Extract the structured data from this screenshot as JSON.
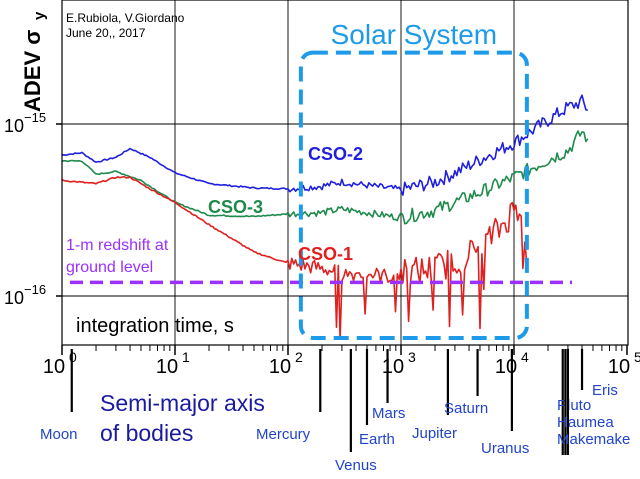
{
  "credit": {
    "line1": "E.Rubiola, V.Giordano",
    "line2": "June 20,, 2017"
  },
  "chart_data": {
    "type": "line",
    "ylabel_main": "ADEV σ",
    "ylabel_sub": "y",
    "xlabel": "integration time, s",
    "x_scale": "log",
    "y_scale": "log",
    "xlim": [
      1,
      100000
    ],
    "ylim": [
      5e-17,
      4e-15
    ],
    "grid": true,
    "x_ticks": [
      {
        "value": 1,
        "base": "10",
        "exp": "0"
      },
      {
        "value": 10,
        "base": "10",
        "exp": "1"
      },
      {
        "value": 100,
        "base": "10",
        "exp": "2"
      },
      {
        "value": 1000,
        "base": "10",
        "exp": "3"
      },
      {
        "value": 10000,
        "base": "10",
        "exp": "4"
      },
      {
        "value": 100000,
        "base": "10",
        "exp": "5"
      }
    ],
    "y_ticks": [
      {
        "value": 1e-15,
        "base": "10",
        "exp": "−15"
      },
      {
        "value": 1e-16,
        "base": "10",
        "exp": "−16"
      }
    ],
    "series": [
      {
        "name": "CSO-2",
        "color": "#1f1fe0",
        "points": [
          [
            1,
            6.6e-16
          ],
          [
            1.5,
            6.8e-16
          ],
          [
            2,
            6e-16
          ],
          [
            3,
            6.4e-16
          ],
          [
            4,
            7.2e-16
          ],
          [
            6,
            6.4e-16
          ],
          [
            10,
            5.2e-16
          ],
          [
            20,
            4.5e-16
          ],
          [
            50,
            4.25e-16
          ],
          [
            100,
            4.2e-16
          ],
          [
            200,
            4.35e-16
          ],
          [
            300,
            4.6e-16
          ],
          [
            500,
            4.4e-16
          ],
          [
            1000,
            4.15e-16
          ],
          [
            2000,
            4.6e-16
          ],
          [
            3000,
            5.2e-16
          ],
          [
            5000,
            6.2e-16
          ],
          [
            10000,
            7.8e-16
          ],
          [
            20000,
            1.05e-15
          ],
          [
            30000,
            1.25e-15
          ],
          [
            40000,
            1.35e-15
          ],
          [
            45000,
            1.2e-15
          ]
        ]
      },
      {
        "name": "CSO-3",
        "color": "#1f8a4c",
        "points": [
          [
            1,
            6.1e-16
          ],
          [
            1.5,
            6.1e-16
          ],
          [
            2,
            5.1e-16
          ],
          [
            3,
            5.3e-16
          ],
          [
            5,
            4.7e-16
          ],
          [
            10,
            3.5e-16
          ],
          [
            20,
            2.95e-16
          ],
          [
            50,
            2.9e-16
          ],
          [
            100,
            3e-16
          ],
          [
            200,
            3.05e-16
          ],
          [
            300,
            3.2e-16
          ],
          [
            500,
            3.05e-16
          ],
          [
            1000,
            2.85e-16
          ],
          [
            2000,
            3.15e-16
          ],
          [
            3000,
            3.5e-16
          ],
          [
            5000,
            4e-16
          ],
          [
            10000,
            4.9e-16
          ],
          [
            20000,
            6.2e-16
          ],
          [
            30000,
            7e-16
          ],
          [
            40000,
            9e-16
          ],
          [
            45000,
            8.2e-16
          ]
        ]
      },
      {
        "name": "CSO-1",
        "color": "#e01f1f",
        "points": [
          [
            1,
            4.7e-16
          ],
          [
            2,
            4.5e-16
          ],
          [
            3,
            4.9e-16
          ],
          [
            4,
            4.9e-16
          ],
          [
            6,
            4.2e-16
          ],
          [
            10,
            3.5e-16
          ],
          [
            20,
            2.6e-16
          ],
          [
            50,
            1.8e-16
          ],
          [
            100,
            1.55e-16
          ],
          [
            200,
            1.45e-16
          ],
          [
            300,
            1.35e-16
          ],
          [
            500,
            1.35e-16
          ],
          [
            800,
            1.3e-16
          ],
          [
            1000,
            1.35e-16
          ],
          [
            2000,
            1.45e-16
          ],
          [
            3000,
            1.6e-16
          ],
          [
            5000,
            1.9e-16
          ],
          [
            8000,
            2.6e-16
          ],
          [
            10000,
            3.2e-16
          ],
          [
            12000,
            3.4e-16
          ],
          [
            13000,
            1.5e-16
          ]
        ]
      }
    ],
    "series_labels": [
      {
        "text": "CSO-2",
        "color": "#1f1fe0"
      },
      {
        "text": "CSO-3",
        "color": "#1f8a4c"
      },
      {
        "text": "CSO-1",
        "color": "#e01f1f"
      }
    ],
    "redshift": {
      "value": 1.2e-16,
      "color": "#9b30ff",
      "label_line1": "1-m redshift at",
      "label_line2": "ground level"
    },
    "solar_box": {
      "label": "Solar System",
      "x_from": 130,
      "x_to": 13000,
      "y_from": 5.7e-17,
      "y_to": 2.6e-15,
      "color": "#1e9be8"
    }
  },
  "axis2": {
    "title_line1": "Semi-major axis",
    "title_line2": "of bodies",
    "bodies": [
      {
        "name": "Moon",
        "x": 1.22
      },
      {
        "name": "Mercury",
        "x": 193
      },
      {
        "name": "Venus",
        "x": 360
      },
      {
        "name": "Earth",
        "x": 500
      },
      {
        "name": "Mars",
        "x": 760
      },
      {
        "name": "Jupiter",
        "x": 2600
      },
      {
        "name": "Saturn",
        "x": 4760
      },
      {
        "name": "Uranus",
        "x": 9580
      },
      {
        "name": "Pluto",
        "x": 27000
      },
      {
        "name": "Haumea",
        "x": 28500
      },
      {
        "name": "Makemake",
        "x": 30000
      },
      {
        "name": "Eris",
        "x": 40000
      }
    ],
    "color": "#2244cc"
  }
}
